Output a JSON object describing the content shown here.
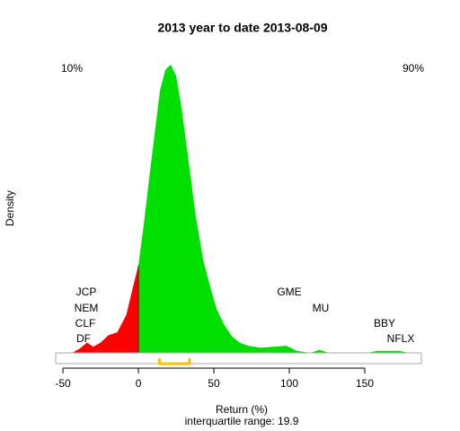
{
  "chart_data": {
    "type": "density",
    "title": "2013  year to date 2013-08-09",
    "x_label": "Return (%)",
    "y_label": "Density",
    "subtitle": "interquartile range: 19.9",
    "left_label": "10%",
    "left_color": "#ff0000",
    "right_label": "90%",
    "right_color": "#00a000",
    "x": [
      -44,
      -39,
      -34,
      -30,
      -25,
      -20,
      -14,
      -8,
      -3.6,
      0,
      3.6,
      7,
      10.7,
      14.3,
      17.9,
      21.4,
      25,
      28.6,
      33.3,
      38,
      43,
      47.6,
      52,
      57,
      62,
      67,
      72.6,
      81,
      90,
      98,
      105,
      114,
      120,
      126,
      152,
      158,
      173,
      179
    ],
    "values": [
      0,
      0.0004,
      0.001,
      0.0006,
      0.001,
      0.0017,
      0.002,
      0.0037,
      0.0064,
      0.0085,
      0.0125,
      0.0168,
      0.0212,
      0.0255,
      0.0275,
      0.028,
      0.0269,
      0.0238,
      0.0186,
      0.0133,
      0.009,
      0.0064,
      0.0042,
      0.0027,
      0.0016,
      0.001,
      0.0007,
      0.0005,
      0.0006,
      0.0007,
      0.0002,
      0,
      0.0003,
      0,
      0,
      0.0002,
      0.0002,
      0
    ],
    "q10": 0,
    "low_color": "#ff0000",
    "high_color": "#00e000",
    "q25": 14,
    "q75": 33.9,
    "iqr_color": "#ffc000",
    "annotations": [
      "JCP",
      "NEM",
      "CLF",
      "DF",
      "GME",
      "MU",
      "BBY",
      "NFLX"
    ],
    "xlim": [
      -54.8,
      187.5
    ],
    "xticks": [
      -50,
      0,
      50,
      100,
      150
    ],
    "ylim": [
      0,
      0.03
    ]
  }
}
